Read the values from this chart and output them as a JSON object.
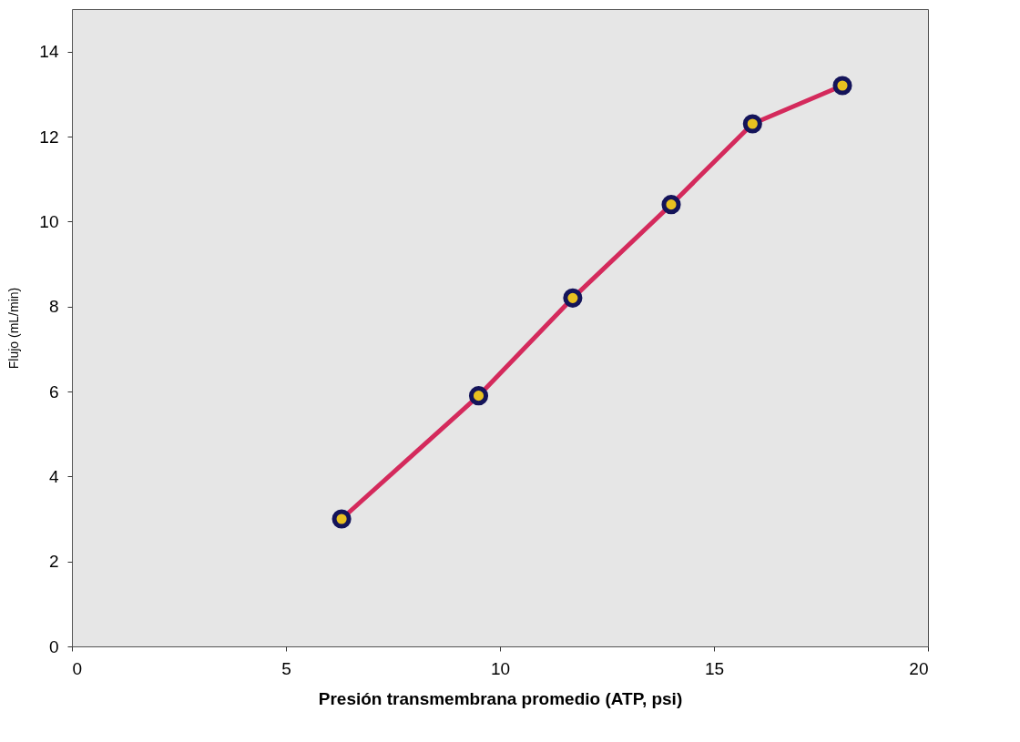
{
  "chart_data": {
    "type": "line",
    "xlabel": "Presión  transmembrana promedio (ATP, psi)",
    "ylabel": "Flujo (mL/min)",
    "x": [
      6.3,
      9.5,
      11.7,
      14.0,
      15.9,
      18.0
    ],
    "series": [
      {
        "color": "#d42a5c",
        "values": [
          3.0,
          5.9,
          8.2,
          10.4,
          12.3,
          13.2
        ]
      }
    ],
    "xlim": [
      0,
      20
    ],
    "ylim": [
      0,
      15
    ],
    "xticks": [
      0,
      5,
      10,
      15,
      20
    ],
    "yticks": [
      0,
      2,
      4,
      6,
      8,
      10,
      12,
      14
    ],
    "grid": false,
    "legend": false,
    "marker": "circle",
    "line_style": "solid"
  }
}
